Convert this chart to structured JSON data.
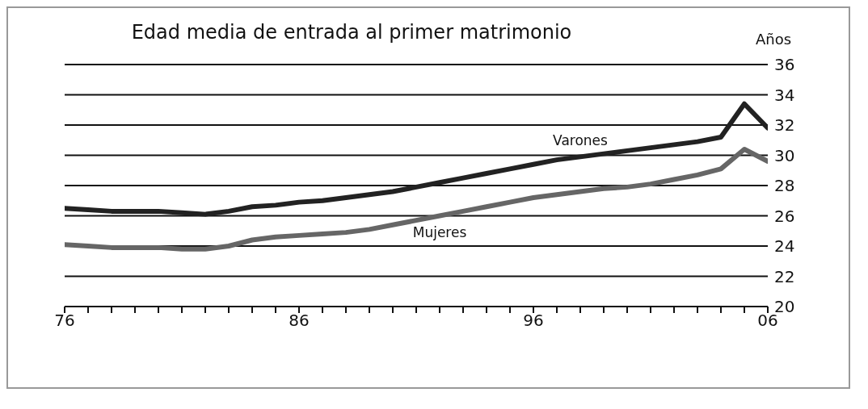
{
  "chart_data": {
    "type": "line",
    "title": "Edad media de entrada al primer matrimonio",
    "ylabel": "Años",
    "x": [
      1976,
      1977,
      1978,
      1979,
      1980,
      1981,
      1982,
      1983,
      1984,
      1985,
      1986,
      1987,
      1988,
      1989,
      1990,
      1991,
      1992,
      1993,
      1994,
      1995,
      1996,
      1997,
      1998,
      1999,
      2000,
      2001,
      2002,
      2003,
      2004,
      2005,
      2006
    ],
    "series": [
      {
        "name": "Varones",
        "color": "#222222",
        "values": [
          26.5,
          26.4,
          26.3,
          26.3,
          26.3,
          26.2,
          26.1,
          26.3,
          26.6,
          26.7,
          26.9,
          27.0,
          27.2,
          27.4,
          27.6,
          27.9,
          28.2,
          28.5,
          28.8,
          29.1,
          29.4,
          29.7,
          29.9,
          30.1,
          30.3,
          30.5,
          30.7,
          30.9,
          31.2,
          33.4,
          31.8
        ]
      },
      {
        "name": "Mujeres",
        "color": "#666666",
        "values": [
          24.1,
          24.0,
          23.9,
          23.9,
          23.9,
          23.8,
          23.8,
          24.0,
          24.4,
          24.6,
          24.7,
          24.8,
          24.9,
          25.1,
          25.4,
          25.7,
          26.0,
          26.3,
          26.6,
          26.9,
          27.2,
          27.4,
          27.6,
          27.8,
          27.9,
          28.1,
          28.4,
          28.7,
          29.1,
          30.4,
          29.6
        ]
      }
    ],
    "xlim": [
      1976,
      2006
    ],
    "xticks": [
      {
        "value": 1976,
        "label": "76"
      },
      {
        "value": 1977,
        "label": null
      },
      {
        "value": 1978,
        "label": null
      },
      {
        "value": 1979,
        "label": null
      },
      {
        "value": 1980,
        "label": null
      },
      {
        "value": 1981,
        "label": null
      },
      {
        "value": 1982,
        "label": null
      },
      {
        "value": 1983,
        "label": null
      },
      {
        "value": 1984,
        "label": null
      },
      {
        "value": 1985,
        "label": null
      },
      {
        "value": 1986,
        "label": "86"
      },
      {
        "value": 1987,
        "label": null
      },
      {
        "value": 1988,
        "label": null
      },
      {
        "value": 1989,
        "label": null
      },
      {
        "value": 1990,
        "label": null
      },
      {
        "value": 1991,
        "label": null
      },
      {
        "value": 1992,
        "label": null
      },
      {
        "value": 1993,
        "label": null
      },
      {
        "value": 1994,
        "label": null
      },
      {
        "value": 1995,
        "label": null
      },
      {
        "value": 1996,
        "label": "96"
      },
      {
        "value": 1997,
        "label": null
      },
      {
        "value": 1998,
        "label": null
      },
      {
        "value": 1999,
        "label": null
      },
      {
        "value": 2000,
        "label": null
      },
      {
        "value": 2001,
        "label": null
      },
      {
        "value": 2002,
        "label": null
      },
      {
        "value": 2003,
        "label": null
      },
      {
        "value": 2004,
        "label": null
      },
      {
        "value": 2005,
        "label": null
      },
      {
        "value": 2006,
        "label": "06"
      }
    ],
    "ylim": [
      20,
      36
    ],
    "yticks": [
      20,
      22,
      24,
      26,
      28,
      30,
      32,
      34,
      36
    ],
    "grid": "y",
    "legend": false,
    "marker": "none",
    "line_style": "solid"
  }
}
